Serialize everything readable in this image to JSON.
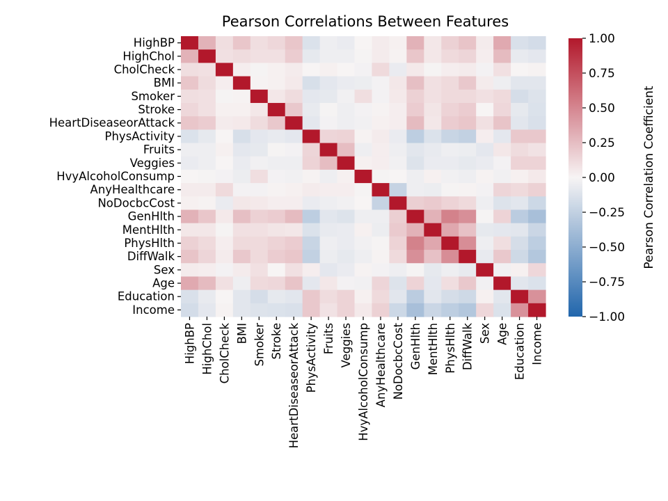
{
  "chart_data": {
    "type": "heatmap",
    "title": "Pearson Correlations Between Features",
    "labels": [
      "HighBP",
      "HighChol",
      "CholCheck",
      "BMI",
      "Smoker",
      "Stroke",
      "HeartDiseaseorAttack",
      "PhysActivity",
      "Fruits",
      "Veggies",
      "HvyAlcoholConsump",
      "AnyHealthcare",
      "NoDocbcCost",
      "GenHlth",
      "MentHlth",
      "PhysHlth",
      "DiffWalk",
      "Sex",
      "Age",
      "Education",
      "Income"
    ],
    "matrix": [
      [
        1.0,
        0.3,
        0.1,
        0.21,
        0.1,
        0.13,
        0.21,
        -0.13,
        -0.04,
        -0.06,
        -0.0,
        0.04,
        0.02,
        0.3,
        0.06,
        0.16,
        0.22,
        0.04,
        0.34,
        -0.14,
        -0.17
      ],
      [
        0.3,
        1.0,
        0.09,
        0.11,
        0.09,
        0.09,
        0.18,
        -0.08,
        -0.04,
        -0.04,
        -0.01,
        0.04,
        0.01,
        0.21,
        0.06,
        0.12,
        0.14,
        0.03,
        0.26,
        -0.07,
        -0.09
      ],
      [
        0.1,
        0.09,
        1.0,
        0.03,
        -0.01,
        0.02,
        0.04,
        0.0,
        0.02,
        0.0,
        -0.02,
        0.12,
        -0.06,
        0.05,
        -0.01,
        0.03,
        0.04,
        -0.02,
        0.09,
        0.0,
        0.01
      ],
      [
        0.21,
        0.11,
        0.03,
        1.0,
        0.01,
        0.02,
        0.05,
        -0.15,
        -0.09,
        -0.06,
        -0.05,
        -0.02,
        0.06,
        0.24,
        0.09,
        0.12,
        0.2,
        0.04,
        -0.04,
        -0.1,
        -0.1
      ],
      [
        0.1,
        0.09,
        -0.01,
        0.01,
        1.0,
        0.06,
        0.11,
        -0.09,
        -0.08,
        -0.03,
        0.1,
        -0.02,
        0.05,
        0.16,
        0.09,
        0.12,
        0.12,
        0.09,
        0.12,
        -0.16,
        -0.12
      ],
      [
        0.13,
        0.09,
        0.02,
        0.02,
        0.06,
        1.0,
        0.2,
        -0.07,
        -0.01,
        -0.04,
        -0.02,
        0.01,
        0.03,
        0.18,
        0.07,
        0.15,
        0.18,
        0.0,
        0.13,
        -0.08,
        -0.13
      ],
      [
        0.21,
        0.18,
        0.04,
        0.05,
        0.11,
        0.2,
        1.0,
        -0.09,
        -0.02,
        -0.04,
        -0.03,
        0.02,
        0.03,
        0.26,
        0.06,
        0.18,
        0.21,
        0.09,
        0.22,
        -0.1,
        -0.14
      ],
      [
        -0.13,
        -0.08,
        0.0,
        -0.15,
        -0.09,
        -0.07,
        -0.09,
        1.0,
        0.14,
        0.15,
        0.01,
        0.04,
        -0.06,
        -0.27,
        -0.13,
        -0.22,
        -0.25,
        0.03,
        -0.09,
        0.2,
        0.2
      ],
      [
        -0.04,
        -0.04,
        0.02,
        -0.09,
        -0.08,
        -0.01,
        -0.02,
        0.14,
        1.0,
        0.25,
        -0.04,
        0.03,
        -0.04,
        -0.1,
        -0.07,
        -0.04,
        -0.05,
        -0.09,
        0.06,
        0.11,
        0.08
      ],
      [
        -0.06,
        -0.04,
        0.0,
        -0.06,
        -0.03,
        -0.04,
        -0.04,
        0.15,
        0.25,
        1.0,
        0.02,
        0.03,
        -0.03,
        -0.12,
        -0.06,
        -0.06,
        -0.08,
        -0.06,
        -0.02,
        0.15,
        0.15
      ],
      [
        -0.0,
        -0.01,
        -0.02,
        -0.05,
        0.1,
        -0.02,
        -0.03,
        0.01,
        -0.04,
        0.02,
        1.0,
        -0.01,
        0.0,
        -0.04,
        0.02,
        -0.03,
        -0.04,
        0.01,
        -0.03,
        0.02,
        0.05
      ],
      [
        0.04,
        0.04,
        0.12,
        -0.02,
        -0.02,
        0.01,
        0.02,
        0.04,
        0.03,
        0.03,
        -0.01,
        1.0,
        -0.23,
        -0.04,
        -0.05,
        -0.01,
        0.01,
        -0.02,
        0.14,
        0.12,
        0.16
      ],
      [
        0.02,
        0.01,
        -0.06,
        0.06,
        0.05,
        0.03,
        0.03,
        -0.06,
        -0.04,
        -0.03,
        0.0,
        -0.23,
        1.0,
        0.17,
        0.19,
        0.15,
        0.12,
        -0.04,
        -0.12,
        -0.1,
        -0.2
      ],
      [
        0.3,
        0.21,
        0.05,
        0.24,
        0.16,
        0.18,
        0.26,
        -0.27,
        -0.1,
        -0.12,
        -0.04,
        -0.04,
        0.17,
        1.0,
        0.3,
        0.52,
        0.46,
        -0.01,
        0.15,
        -0.28,
        -0.37
      ],
      [
        0.06,
        0.06,
        -0.01,
        0.09,
        0.09,
        0.07,
        0.06,
        -0.13,
        -0.07,
        -0.06,
        0.02,
        -0.05,
        0.19,
        0.3,
        1.0,
        0.35,
        0.23,
        -0.08,
        -0.09,
        -0.1,
        -0.21
      ],
      [
        0.16,
        0.12,
        0.03,
        0.12,
        0.12,
        0.15,
        0.18,
        -0.22,
        -0.04,
        -0.06,
        -0.03,
        -0.01,
        0.15,
        0.52,
        0.35,
        1.0,
        0.47,
        -0.04,
        0.1,
        -0.16,
        -0.27
      ],
      [
        0.22,
        0.14,
        0.04,
        0.2,
        0.12,
        0.18,
        0.21,
        -0.25,
        -0.05,
        -0.08,
        -0.04,
        0.01,
        0.12,
        0.46,
        0.23,
        0.47,
        1.0,
        -0.07,
        0.2,
        -0.19,
        -0.32
      ],
      [
        0.04,
        0.03,
        -0.02,
        0.04,
        0.09,
        0.0,
        0.09,
        0.03,
        -0.09,
        -0.06,
        0.01,
        -0.02,
        -0.04,
        -0.01,
        -0.08,
        -0.04,
        -0.07,
        1.0,
        -0.03,
        0.02,
        0.13
      ],
      [
        0.34,
        0.26,
        0.09,
        -0.04,
        0.12,
        0.13,
        0.22,
        -0.09,
        0.06,
        -0.02,
        -0.03,
        0.14,
        -0.12,
        0.15,
        -0.09,
        0.1,
        0.2,
        -0.03,
        1.0,
        -0.1,
        -0.13
      ],
      [
        -0.14,
        -0.07,
        0.0,
        -0.1,
        -0.16,
        -0.08,
        -0.1,
        0.2,
        0.11,
        0.15,
        0.02,
        0.12,
        -0.1,
        -0.28,
        -0.1,
        -0.16,
        -0.19,
        0.02,
        -0.1,
        1.0,
        0.45
      ],
      [
        -0.17,
        -0.09,
        0.01,
        -0.1,
        -0.12,
        -0.13,
        -0.14,
        0.2,
        0.08,
        0.15,
        0.05,
        0.16,
        -0.2,
        -0.37,
        -0.21,
        -0.27,
        -0.32,
        0.13,
        -0.13,
        0.45,
        1.0
      ]
    ],
    "colorbar": {
      "label": "Pearson Correlation Coefficient",
      "vmin": -1.0,
      "vmax": 1.0,
      "ticks": [
        "1.00",
        "0.75",
        "0.50",
        "0.25",
        "0.00",
        "−0.25",
        "−0.50",
        "−0.75",
        "−1.00"
      ],
      "tick_values": [
        1.0,
        0.75,
        0.5,
        0.25,
        0.0,
        -0.25,
        -0.5,
        -0.75,
        -1.0
      ]
    },
    "colormap": {
      "name": "vlag-style diverging",
      "low": "#2166ac",
      "mid": "#f7f4f4",
      "high": "#b2182b"
    }
  }
}
